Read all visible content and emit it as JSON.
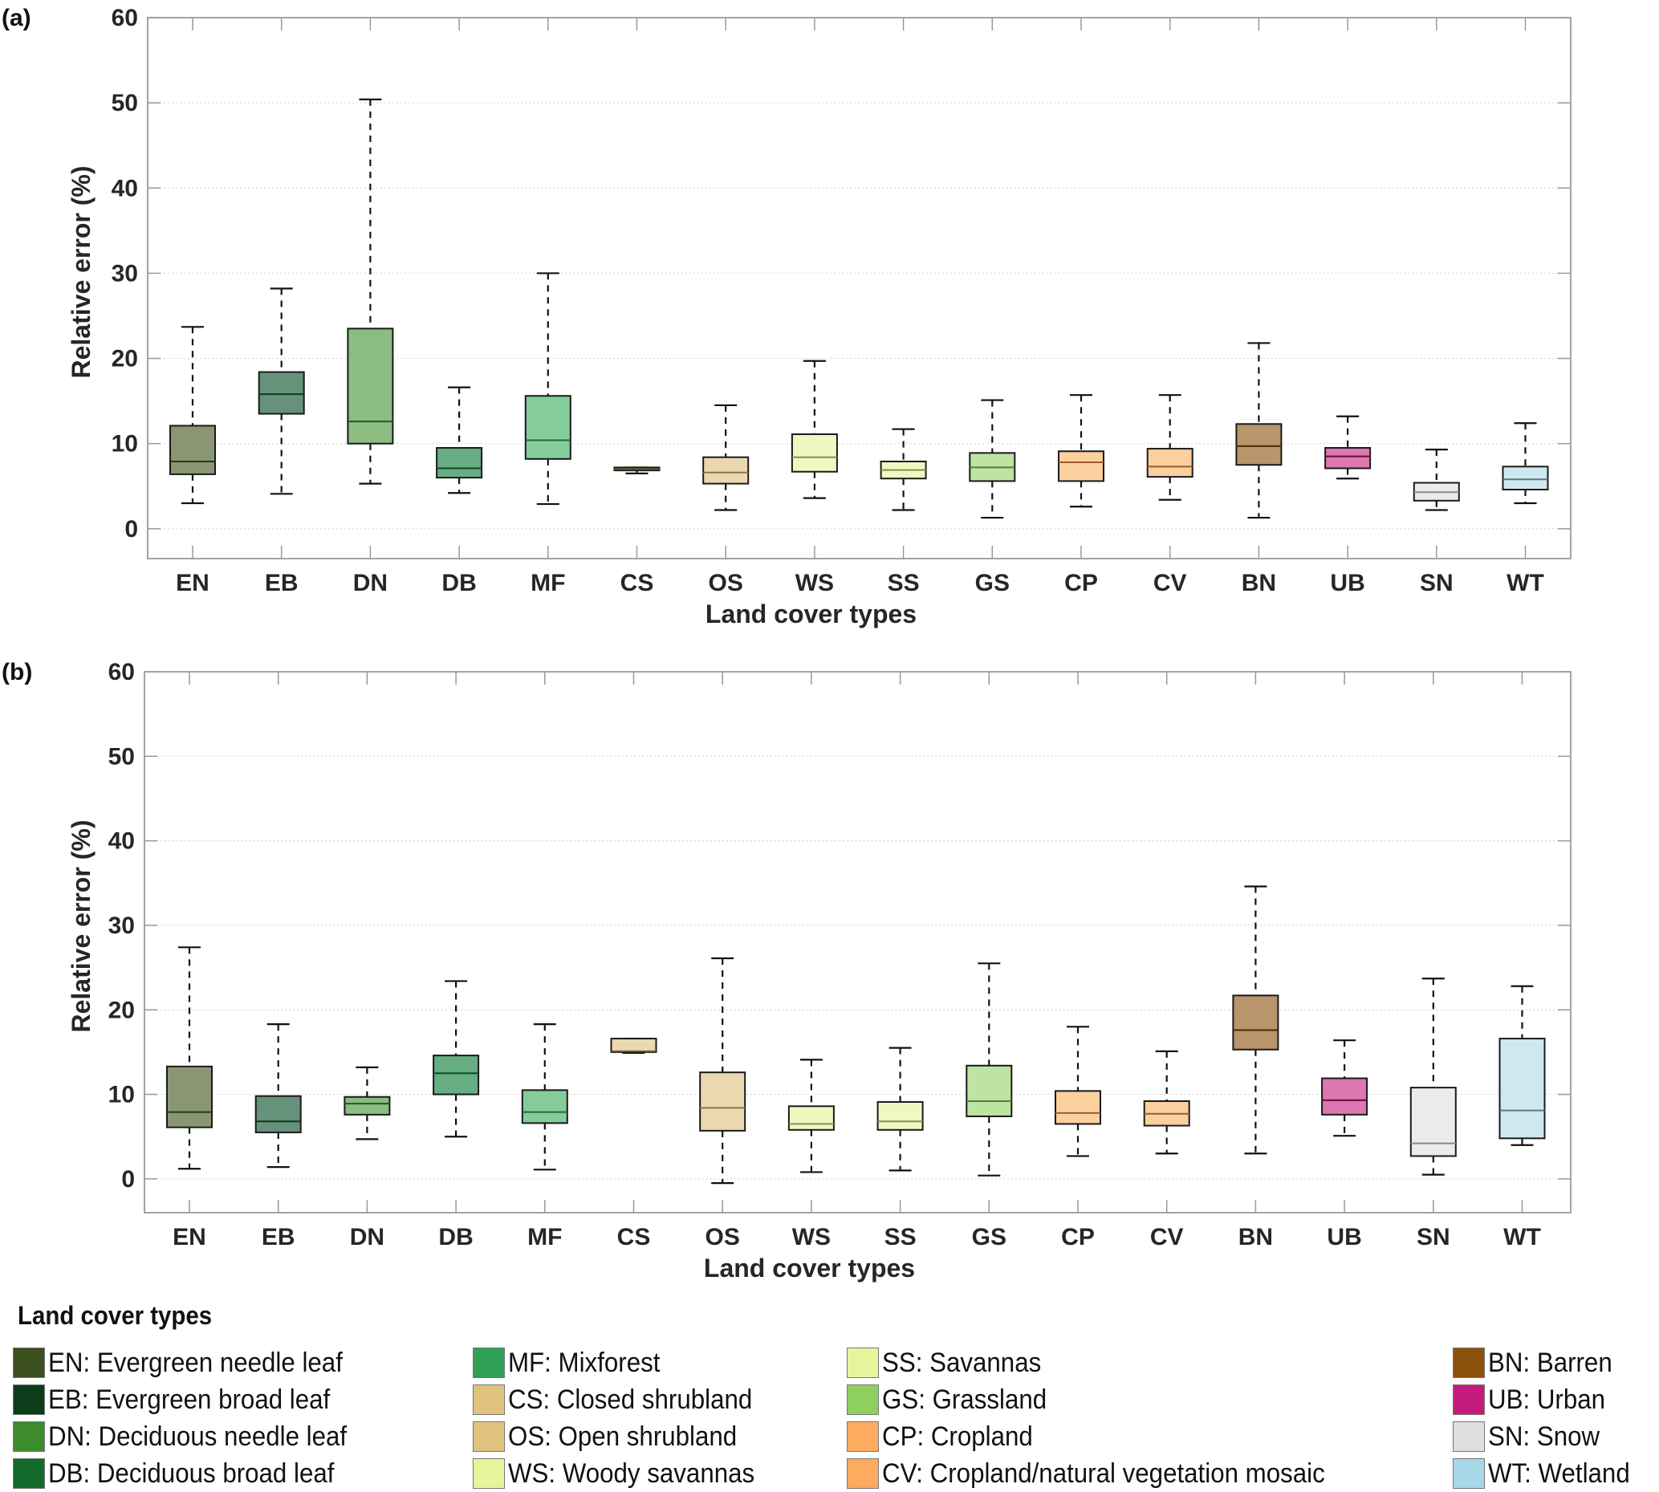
{
  "chart_data": [
    {
      "panel": "(a)",
      "type": "boxplot",
      "ylabel": "Relative error (%)",
      "xlabel": "Land cover types",
      "ylim": [
        -3.5,
        60
      ],
      "yticks": [
        0,
        10,
        20,
        30,
        40,
        50,
        60
      ],
      "grid": "y-dotted",
      "categories": [
        "EN",
        "EB",
        "DN",
        "DB",
        "MF",
        "CS",
        "OS",
        "WS",
        "SS",
        "GS",
        "CP",
        "CV",
        "BN",
        "UB",
        "SN",
        "WT"
      ],
      "boxes": [
        {
          "cat": "EN",
          "min": 3.0,
          "q1": 6.4,
          "median": 7.9,
          "q3": 12.1,
          "max": 23.7
        },
        {
          "cat": "EB",
          "min": 4.1,
          "q1": 13.5,
          "median": 15.8,
          "q3": 18.4,
          "max": 28.2
        },
        {
          "cat": "DN",
          "min": 5.3,
          "q1": 10.0,
          "median": 12.6,
          "q3": 23.5,
          "max": 50.4
        },
        {
          "cat": "DB",
          "min": 4.2,
          "q1": 6.0,
          "median": 7.1,
          "q3": 9.5,
          "max": 16.6
        },
        {
          "cat": "MF",
          "min": 2.9,
          "q1": 8.2,
          "median": 10.4,
          "q3": 15.6,
          "max": 30.0
        },
        {
          "cat": "CS",
          "min": 6.5,
          "q1": 6.85,
          "median": 7.0,
          "q3": 7.2,
          "max": 7.2
        },
        {
          "cat": "OS",
          "min": 2.2,
          "q1": 5.3,
          "median": 6.6,
          "q3": 8.4,
          "max": 14.5
        },
        {
          "cat": "WS",
          "min": 3.6,
          "q1": 6.7,
          "median": 8.4,
          "q3": 11.1,
          "max": 19.7
        },
        {
          "cat": "SS",
          "min": 2.2,
          "q1": 5.9,
          "median": 6.9,
          "q3": 7.9,
          "max": 11.7
        },
        {
          "cat": "GS",
          "min": 1.3,
          "q1": 5.6,
          "median": 7.2,
          "q3": 8.9,
          "max": 15.1
        },
        {
          "cat": "CP",
          "min": 2.6,
          "q1": 5.6,
          "median": 7.8,
          "q3": 9.1,
          "max": 15.7
        },
        {
          "cat": "CV",
          "min": 3.4,
          "q1": 6.1,
          "median": 7.3,
          "q3": 9.4,
          "max": 15.7
        },
        {
          "cat": "BN",
          "min": 1.3,
          "q1": 7.5,
          "median": 9.7,
          "q3": 12.3,
          "max": 21.8
        },
        {
          "cat": "UB",
          "min": 5.9,
          "q1": 7.1,
          "median": 8.5,
          "q3": 9.5,
          "max": 13.2
        },
        {
          "cat": "SN",
          "min": 2.2,
          "q1": 3.3,
          "median": 4.3,
          "q3": 5.4,
          "max": 9.3
        },
        {
          "cat": "WT",
          "min": 3.0,
          "q1": 4.6,
          "median": 5.8,
          "q3": 7.3,
          "max": 12.4
        }
      ]
    },
    {
      "panel": "(b)",
      "type": "boxplot",
      "ylabel": "Relative error (%)",
      "xlabel": "Land cover types",
      "ylim": [
        -4,
        60
      ],
      "yticks": [
        0,
        10,
        20,
        30,
        40,
        50,
        60
      ],
      "grid": "y-dotted",
      "categories": [
        "EN",
        "EB",
        "DN",
        "DB",
        "MF",
        "CS",
        "OS",
        "WS",
        "SS",
        "GS",
        "CP",
        "CV",
        "BN",
        "UB",
        "SN",
        "WT"
      ],
      "boxes": [
        {
          "cat": "EN",
          "min": 1.2,
          "q1": 6.1,
          "median": 7.9,
          "q3": 13.3,
          "max": 27.4
        },
        {
          "cat": "EB",
          "min": 1.4,
          "q1": 5.5,
          "median": 6.8,
          "q3": 9.8,
          "max": 18.3
        },
        {
          "cat": "DN",
          "min": 4.7,
          "q1": 7.6,
          "median": 8.9,
          "q3": 9.7,
          "max": 13.2
        },
        {
          "cat": "DB",
          "min": 5.0,
          "q1": 10.0,
          "median": 12.5,
          "q3": 14.6,
          "max": 23.4
        },
        {
          "cat": "MF",
          "min": 1.1,
          "q1": 6.6,
          "median": 7.9,
          "q3": 10.5,
          "max": 18.3
        },
        {
          "cat": "CS",
          "min": 14.9,
          "q1": 15.0,
          "median": 15.1,
          "q3": 16.6,
          "max": 16.6
        },
        {
          "cat": "OS",
          "min": -0.5,
          "q1": 5.7,
          "median": 8.4,
          "q3": 12.6,
          "max": 26.1
        },
        {
          "cat": "WS",
          "min": 0.8,
          "q1": 5.8,
          "median": 6.5,
          "q3": 8.6,
          "max": 14.1
        },
        {
          "cat": "SS",
          "min": 1.0,
          "q1": 5.8,
          "median": 6.8,
          "q3": 9.1,
          "max": 15.5
        },
        {
          "cat": "GS",
          "min": 0.4,
          "q1": 7.4,
          "median": 9.2,
          "q3": 13.4,
          "max": 25.5
        },
        {
          "cat": "CP",
          "min": 2.7,
          "q1": 6.5,
          "median": 7.8,
          "q3": 10.4,
          "max": 18.0
        },
        {
          "cat": "CV",
          "min": 3.0,
          "q1": 6.3,
          "median": 7.7,
          "q3": 9.2,
          "max": 15.1
        },
        {
          "cat": "BN",
          "min": 3.0,
          "q1": 15.3,
          "median": 17.6,
          "q3": 21.7,
          "max": 34.6
        },
        {
          "cat": "UB",
          "min": 5.1,
          "q1": 7.6,
          "median": 9.3,
          "q3": 11.9,
          "max": 16.4
        },
        {
          "cat": "SN",
          "min": 0.5,
          "q1": 2.7,
          "median": 4.2,
          "q3": 10.8,
          "max": 23.7
        },
        {
          "cat": "WT",
          "min": 4.0,
          "q1": 4.8,
          "median": 8.1,
          "q3": 16.6,
          "max": 22.8
        }
      ]
    }
  ],
  "box_styles": {
    "EN": {
      "fill": "#8a9673",
      "line": "#1f3d1a"
    },
    "EB": {
      "fill": "#66917a",
      "line": "#0d3a1c"
    },
    "DN": {
      "fill": "#8bbd80",
      "line": "#1f5a1f"
    },
    "DB": {
      "fill": "#66ad82",
      "line": "#0d4a22"
    },
    "MF": {
      "fill": "#85cc9b",
      "line": "#1f6a3a"
    },
    "CS": {
      "fill": "#ead9b0",
      "line": "#6b5a30"
    },
    "OS": {
      "fill": "#ead9b0",
      "line": "#8a7550"
    },
    "WS": {
      "fill": "#f0f8c2",
      "line": "#8a8a50"
    },
    "SS": {
      "fill": "#f0f8c2",
      "line": "#8a8a50"
    },
    "GS": {
      "fill": "#bfe3a0",
      "line": "#4f7f30"
    },
    "CP": {
      "fill": "#fccf9f",
      "line": "#9a5a2a"
    },
    "CV": {
      "fill": "#fccf9f",
      "line": "#9a5a2a"
    },
    "BN": {
      "fill": "#b8956a",
      "line": "#4a2a08"
    },
    "UB": {
      "fill": "#dc77b0",
      "line": "#6a0a3a"
    },
    "SN": {
      "fill": "#ebebeb",
      "line": "#888888"
    },
    "WT": {
      "fill": "#cfe8f0",
      "line": "#5a7a80"
    }
  },
  "legend": {
    "title": "Land cover types",
    "items": [
      {
        "code": "EN",
        "label": "EN: Evergreen needle leaf",
        "color": "#3b4f1f"
      },
      {
        "code": "EB",
        "label": "EB: Evergreen broad leaf",
        "color": "#0b3d1a"
      },
      {
        "code": "DN",
        "label": "DN: Deciduous needle leaf",
        "color": "#3d8c2e"
      },
      {
        "code": "DB",
        "label": "DB: Deciduous broad leaf",
        "color": "#126b2a"
      },
      {
        "code": "MF",
        "label": "MF: Mixforest",
        "color": "#2fa055"
      },
      {
        "code": "CS",
        "label": "CS: Closed shrubland",
        "color": "#dfc27d"
      },
      {
        "code": "OS",
        "label": "OS: Open shrubland",
        "color": "#dfc27d"
      },
      {
        "code": "WS",
        "label": "WS: Woody savannas",
        "color": "#e6f59c"
      },
      {
        "code": "SS",
        "label": "SS: Savannas",
        "color": "#e6f59c"
      },
      {
        "code": "GS",
        "label": "GS: Grassland",
        "color": "#8fcf5f"
      },
      {
        "code": "CP",
        "label": "CP: Cropland",
        "color": "#fdab60"
      },
      {
        "code": "CV",
        "label": "CV: Cropland/natural vegetation mosaic",
        "color": "#fdab60"
      },
      {
        "code": "BN",
        "label": "BN: Barren",
        "color": "#8c510a"
      },
      {
        "code": "UB",
        "label": "UB: Urban",
        "color": "#c51b7d"
      },
      {
        "code": "SN",
        "label": "SN: Snow",
        "color": "#dedede"
      },
      {
        "code": "WT",
        "label": "WT: Wetland",
        "color": "#a6d8e8"
      }
    ]
  }
}
